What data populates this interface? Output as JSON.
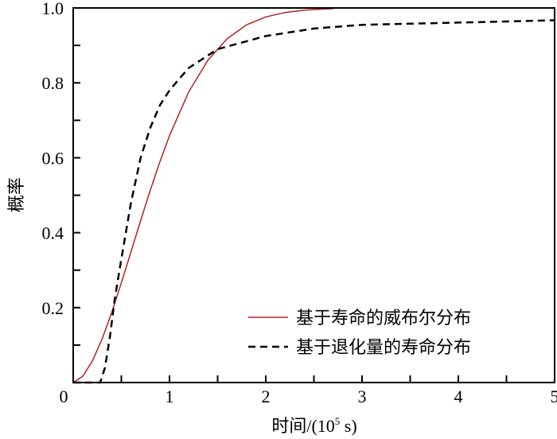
{
  "chart_data": {
    "type": "line",
    "title": "",
    "xlabel": "时间/(10",
    "xlabel_sup": "5",
    "xlabel_tail": " s)",
    "ylabel": "概率",
    "xlim": [
      0,
      5
    ],
    "ylim": [
      0,
      1.0
    ],
    "x_ticks": [
      0,
      1,
      2,
      3,
      4,
      5
    ],
    "x_tick_labels": [
      "0",
      "1",
      "2",
      "3",
      "4",
      "5"
    ],
    "x_minor_step": 0.5,
    "y_ticks": [
      0.2,
      0.4,
      0.6,
      0.8,
      1.0
    ],
    "y_tick_labels": [
      "0.2",
      "0.4",
      "0.6",
      "0.8",
      "1.0"
    ],
    "y_minor_step": 0.1,
    "grid": false,
    "legend_position": "bottom-right",
    "series": [
      {
        "name": "基于寿命的威布尔分布",
        "color": "#b22222",
        "style": "solid",
        "x": [
          0,
          0.1,
          0.2,
          0.3,
          0.4,
          0.5,
          0.6,
          0.7,
          0.8,
          0.9,
          1.0,
          1.2,
          1.4,
          1.6,
          1.8,
          2.0,
          2.2,
          2.4,
          2.6,
          2.7
        ],
        "y": [
          0,
          0.017,
          0.058,
          0.116,
          0.187,
          0.266,
          0.349,
          0.432,
          0.513,
          0.589,
          0.659,
          0.776,
          0.861,
          0.918,
          0.955,
          0.976,
          0.988,
          0.994,
          0.997,
          0.998
        ]
      },
      {
        "name": "基于退化量的寿命分布",
        "color": "#000000",
        "style": "dashed",
        "x": [
          0,
          0.28,
          0.33,
          0.38,
          0.43,
          0.5,
          0.6,
          0.7,
          0.8,
          0.9,
          1.0,
          1.2,
          1.5,
          2.0,
          2.5,
          3.0,
          3.5,
          4.0,
          4.5,
          5.0
        ],
        "y": [
          0,
          0,
          0.04,
          0.12,
          0.22,
          0.33,
          0.48,
          0.6,
          0.68,
          0.74,
          0.78,
          0.84,
          0.89,
          0.925,
          0.945,
          0.955,
          0.958,
          0.961,
          0.964,
          0.967
        ]
      }
    ]
  }
}
